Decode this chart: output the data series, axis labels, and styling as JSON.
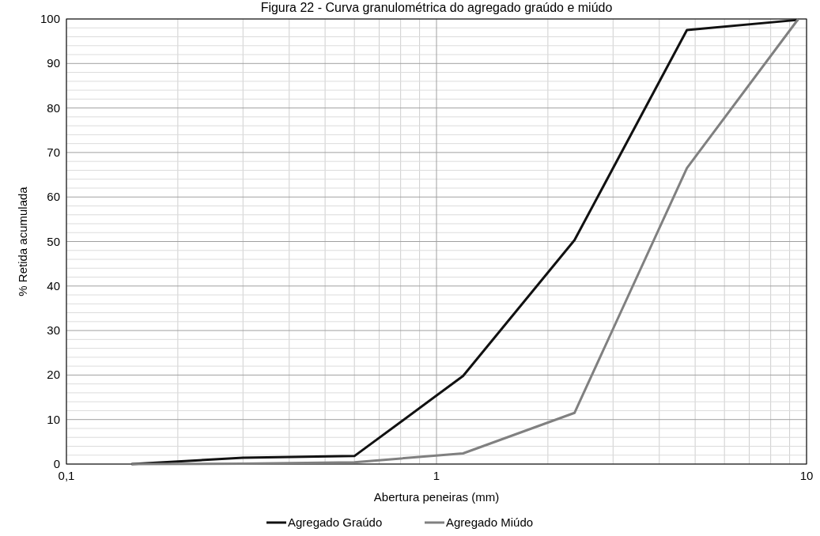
{
  "chart_data": {
    "type": "line",
    "title": "Figura 22 - Curva granulométrica do agregado graúdo e miúdo",
    "xlabel": "Abertura peneiras (mm)",
    "ylabel": "% Retida acumulada",
    "x": [
      0.15,
      0.3,
      0.6,
      1.18,
      2.36,
      4.75,
      9.5
    ],
    "series": [
      {
        "name": "Agregado Graúdo",
        "color": "#111111",
        "values": [
          0,
          1.4,
          1.8,
          19.8,
          50.3,
          97.5,
          99.8
        ]
      },
      {
        "name": "Agregado Miúdo",
        "color": "#808080",
        "values": [
          0,
          0.1,
          0.4,
          2.4,
          11.5,
          66.5,
          100
        ]
      }
    ],
    "log": "x",
    "xlim": [
      0.1,
      10
    ],
    "xticks": [
      {
        "value": 0.1,
        "label": "0,1"
      },
      1,
      10
    ],
    "ylim": [
      0,
      100
    ],
    "yticks": [
      0,
      10,
      20,
      30,
      40,
      50,
      60,
      70,
      80,
      90,
      100
    ],
    "grid": true,
    "legend": "bottom",
    "line_style": "solid"
  }
}
